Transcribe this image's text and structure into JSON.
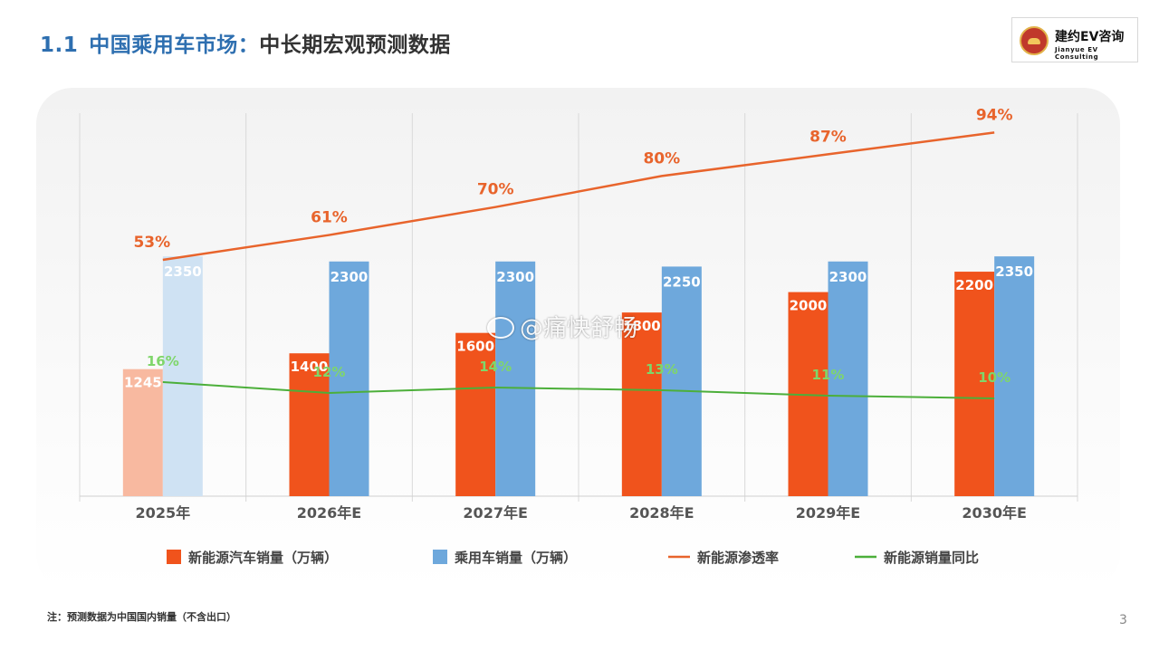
{
  "header": {
    "section_number": "1.1",
    "title_main": "中国乘用车市场：",
    "title_sub": "中长期宏观预测数据"
  },
  "logo": {
    "name_cn": "建约EV咨询",
    "name_en": "Jianyue   EV  Consulting"
  },
  "watermark": {
    "text": "@痛快舒畅",
    "icon": "weibo-icon"
  },
  "footer": {
    "note": "注：预测数据为中国国内销量（不含出口）",
    "page_number": "3"
  },
  "colors": {
    "nev_bar": "#f0531c",
    "nev_bar_actual": "#f8b9a0",
    "total_bar": "#6ea8dc",
    "total_bar_actual": "#cfe2f3",
    "penetration_line": "#e8642c",
    "yoy_line": "#4caf3a",
    "title_blue": "#2e6fb0"
  },
  "chart_data": {
    "type": "bar",
    "categories": [
      "2025年",
      "2026年E",
      "2027年E",
      "2028年E",
      "2029年E",
      "2030年E"
    ],
    "actual_categories": [
      "2025年"
    ],
    "series": [
      {
        "name": "新能源汽车销量（万辆）",
        "type": "bar",
        "values": [
          1245,
          1400,
          1600,
          1800,
          2000,
          2200
        ],
        "labels": [
          "1245",
          "1400",
          "1600",
          "1800",
          "2000",
          "2200"
        ]
      },
      {
        "name": "乘用车销量（万辆）",
        "type": "bar",
        "values": [
          2350,
          2300,
          2300,
          2250,
          2300,
          2350
        ],
        "labels": [
          "2350",
          "2300",
          "2300",
          "2250",
          "2300",
          "2350"
        ]
      },
      {
        "name": "新能源渗透率",
        "type": "line",
        "values": [
          53,
          61,
          70,
          80,
          87,
          94
        ],
        "labels": [
          "53%",
          "61%",
          "70%",
          "80%",
          "87%",
          "94%"
        ]
      },
      {
        "name": "新能源销量同比",
        "type": "line",
        "values": [
          16,
          12,
          14,
          13,
          11,
          10
        ],
        "labels": [
          "16%",
          "12%",
          "14%",
          "13%",
          "11%",
          "10%"
        ]
      }
    ],
    "legend_position": "bottom",
    "grid": "vertical category separators"
  }
}
